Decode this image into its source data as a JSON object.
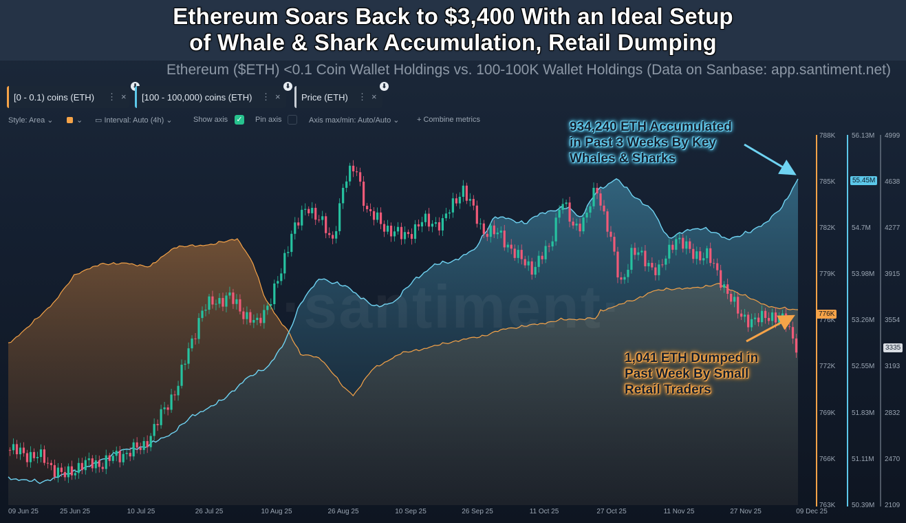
{
  "title": [
    "Ethereum Soars Back to $3,400 With an Ideal Setup",
    "of Whale & Shark Accumulation, Retail Dumping"
  ],
  "subtitle": "Ethereum ($ETH) <0.1 Coin Wallet Holdings vs. 100-100K Wallet Holdings (Data on Sanbase: app.santiment.net)",
  "metrics": [
    {
      "label": "[0 - 0.1) coins (ETH)",
      "color": "#f5a348"
    },
    {
      "label": "[100 - 100,000) coins (ETH)",
      "color": "#5cc8ea"
    },
    {
      "label": "Price (ETH)",
      "color": "#c9ced6"
    }
  ],
  "toolbar": {
    "style": "Style: Area",
    "interval": "Interval: Auto (4h)",
    "show_axis": "Show axis",
    "pin_axis": "Pin axis",
    "axis_maxmin": "Axis max/min: Auto/Auto",
    "combine": "Combine metrics"
  },
  "watermark": "·santiment·",
  "annotations": {
    "whales": [
      "934,240 ETH Accumulated",
      "in Past 3 Weeks By Key",
      "Whales & Sharks"
    ],
    "retail": [
      "1,041 ETH Dumped in",
      "Past Week By Small",
      "Retail Traders"
    ]
  },
  "colors": {
    "retail": "#f5a348",
    "whale": "#5cc8ea",
    "candle_up": "#26c2a0",
    "candle_down": "#ef5a78"
  },
  "chart_data": {
    "type": "area",
    "x_labels": [
      "09 Jun 25",
      "25 Jun 25",
      "10 Jul 25",
      "26 Jul 25",
      "10 Aug 25",
      "26 Aug 25",
      "10 Sep 25",
      "26 Sep 25",
      "11 Oct 25",
      "27 Oct 25",
      "11 Nov 25",
      "27 Nov 25",
      "09 Dec 25"
    ],
    "axes": {
      "retail_ticks": [
        "788K",
        "785K",
        "782K",
        "779K",
        "776K",
        "772K",
        "769K",
        "766K",
        "763K"
      ],
      "whale_ticks": [
        "56.13M",
        "55.45M",
        "54.7M",
        "53.98M",
        "53.26M",
        "52.55M",
        "51.83M",
        "51.11M",
        "50.39M"
      ],
      "price_ticks": [
        "4999",
        "4638",
        "4277",
        "3915",
        "3554",
        "3193",
        "2832",
        "2470",
        "2109"
      ]
    },
    "badges": {
      "retail": "776K",
      "whale": "55.45M",
      "price": "3335"
    },
    "retail_ylim": [
      763000,
      788000
    ],
    "whale_ylim": [
      50390000,
      56130000
    ],
    "price_ylim": [
      2109,
      4999
    ],
    "series": [
      {
        "name": "[0 - 0.1) coins (ETH)",
        "unit": "K",
        "points": [
          [
            0,
            773.9
          ],
          [
            0.025,
            775
          ],
          [
            0.06,
            776.8
          ],
          [
            0.085,
            778.6
          ],
          [
            0.12,
            779.3
          ],
          [
            0.15,
            779.3
          ],
          [
            0.18,
            779.1
          ],
          [
            0.21,
            780.4
          ],
          [
            0.26,
            780.6
          ],
          [
            0.29,
            781.0
          ],
          [
            0.31,
            779.3
          ],
          [
            0.325,
            777
          ],
          [
            0.345,
            775.3
          ],
          [
            0.355,
            774.7
          ],
          [
            0.37,
            773.2
          ],
          [
            0.395,
            772.9
          ],
          [
            0.41,
            772
          ],
          [
            0.425,
            770.9
          ],
          [
            0.437,
            770.4
          ],
          [
            0.46,
            772.1
          ],
          [
            0.495,
            773.2
          ],
          [
            0.53,
            773.6
          ],
          [
            0.56,
            774
          ],
          [
            0.6,
            774.4
          ],
          [
            0.63,
            774.9
          ],
          [
            0.67,
            775.2
          ],
          [
            0.7,
            775.5
          ],
          [
            0.745,
            775.6
          ],
          [
            0.75,
            776.1
          ],
          [
            0.795,
            776.9
          ],
          [
            0.815,
            777.4
          ],
          [
            0.835,
            777.6
          ],
          [
            0.86,
            777.6
          ],
          [
            0.9,
            777.9
          ],
          [
            0.925,
            777.3
          ],
          [
            0.95,
            776.7
          ],
          [
            0.97,
            776.3
          ],
          [
            1.0,
            776.2
          ]
        ]
      },
      {
        "name": "[100 - 100,000) coins (ETH)",
        "unit": "M",
        "points": [
          [
            0,
            50.81
          ],
          [
            0.04,
            50.74
          ],
          [
            0.07,
            50.85
          ],
          [
            0.105,
            51.0
          ],
          [
            0.14,
            51.22
          ],
          [
            0.175,
            51.3
          ],
          [
            0.205,
            51.48
          ],
          [
            0.235,
            51.78
          ],
          [
            0.27,
            52.0
          ],
          [
            0.3,
            52.33
          ],
          [
            0.33,
            52.55
          ],
          [
            0.35,
            52.9
          ],
          [
            0.37,
            53.52
          ],
          [
            0.395,
            53.91
          ],
          [
            0.43,
            53.76
          ],
          [
            0.465,
            53.45
          ],
          [
            0.49,
            53.55
          ],
          [
            0.515,
            53.89
          ],
          [
            0.54,
            54.11
          ],
          [
            0.565,
            54.18
          ],
          [
            0.59,
            54.34
          ],
          [
            0.615,
            54.84
          ],
          [
            0.63,
            54.84
          ],
          [
            0.655,
            54.75
          ],
          [
            0.675,
            54.92
          ],
          [
            0.71,
            55.0
          ],
          [
            0.725,
            54.84
          ],
          [
            0.745,
            55.25
          ],
          [
            0.77,
            55.45
          ],
          [
            0.79,
            55.2
          ],
          [
            0.815,
            54.97
          ],
          [
            0.835,
            54.53
          ],
          [
            0.86,
            54.64
          ],
          [
            0.88,
            54.69
          ],
          [
            0.91,
            54.51
          ],
          [
            0.94,
            54.62
          ],
          [
            0.96,
            54.78
          ],
          [
            0.98,
            55.0
          ],
          [
            1.0,
            55.45
          ]
        ]
      },
      {
        "name": "Price (ETH)",
        "points": [
          [
            0,
            2540
          ],
          [
            0.02,
            2515
          ],
          [
            0.045,
            2470
          ],
          [
            0.07,
            2330
          ],
          [
            0.09,
            2420
          ],
          [
            0.12,
            2440
          ],
          [
            0.145,
            2510
          ],
          [
            0.17,
            2560
          ],
          [
            0.185,
            2710
          ],
          [
            0.2,
            2880
          ],
          [
            0.215,
            3050
          ],
          [
            0.23,
            3350
          ],
          [
            0.245,
            3620
          ],
          [
            0.26,
            3700
          ],
          [
            0.28,
            3730
          ],
          [
            0.3,
            3600
          ],
          [
            0.315,
            3510
          ],
          [
            0.33,
            3700
          ],
          [
            0.345,
            3900
          ],
          [
            0.36,
            4280
          ],
          [
            0.38,
            4420
          ],
          [
            0.395,
            4360
          ],
          [
            0.41,
            4130
          ],
          [
            0.425,
            4640
          ],
          [
            0.44,
            4740
          ],
          [
            0.455,
            4400
          ],
          [
            0.475,
            4290
          ],
          [
            0.5,
            4200
          ],
          [
            0.525,
            4320
          ],
          [
            0.55,
            4310
          ],
          [
            0.575,
            4590
          ],
          [
            0.6,
            4260
          ],
          [
            0.625,
            4210
          ],
          [
            0.645,
            4040
          ],
          [
            0.665,
            3960
          ],
          [
            0.685,
            4120
          ],
          [
            0.7,
            4500
          ],
          [
            0.715,
            4280
          ],
          [
            0.73,
            4340
          ],
          [
            0.745,
            4580
          ],
          [
            0.76,
            4270
          ],
          [
            0.775,
            3810
          ],
          [
            0.79,
            4100
          ],
          [
            0.81,
            4000
          ],
          [
            0.825,
            3930
          ],
          [
            0.845,
            4210
          ],
          [
            0.865,
            4070
          ],
          [
            0.885,
            4060
          ],
          [
            0.905,
            3840
          ],
          [
            0.925,
            3600
          ],
          [
            0.945,
            3540
          ],
          [
            0.965,
            3600
          ],
          [
            0.985,
            3530
          ],
          [
            1.0,
            3335
          ]
        ]
      }
    ]
  }
}
